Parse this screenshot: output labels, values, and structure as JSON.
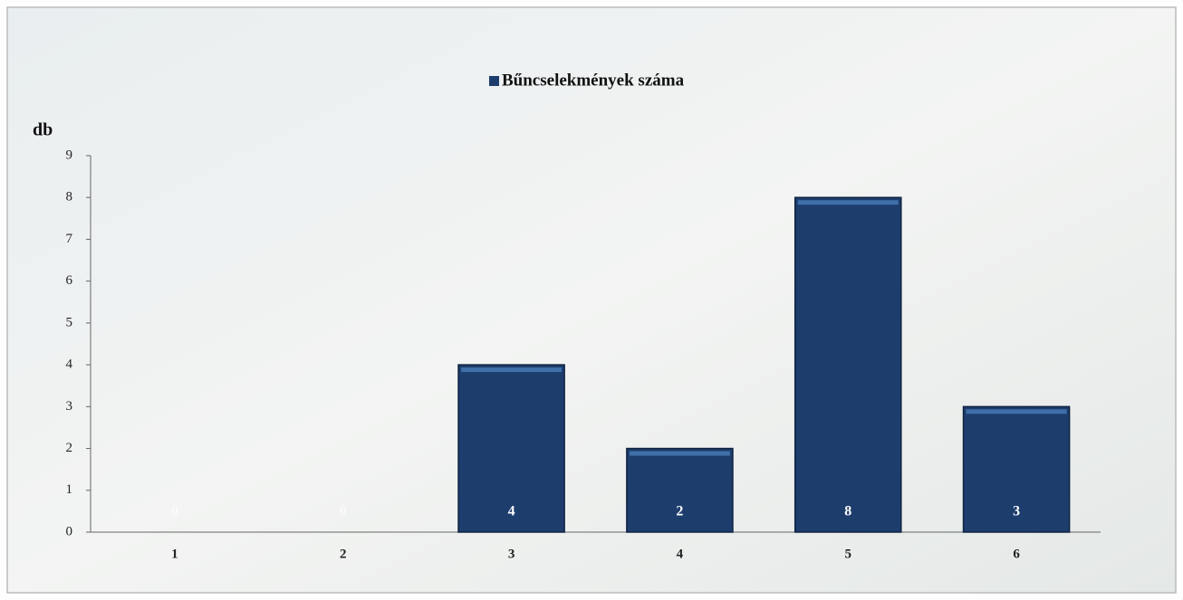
{
  "chart_data": {
    "type": "bar",
    "legend": "Bűncselekmények száma",
    "y_label": "db",
    "categories": [
      "1",
      "2",
      "3",
      "4",
      "5",
      "6"
    ],
    "values": [
      0,
      0,
      4,
      2,
      8,
      3
    ],
    "color": "#1d3d6d",
    "ylim": [
      0,
      9
    ],
    "yticks": [
      0,
      1,
      2,
      3,
      4,
      5,
      6,
      7,
      8,
      9
    ],
    "grid": false
  }
}
